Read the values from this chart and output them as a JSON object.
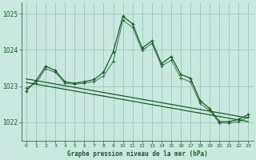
{
  "title": "Graphe pression niveau de la mer (hPa)",
  "background_color": "#c8e8e0",
  "plot_bg_color": "#c8e8e0",
  "grid_color": "#a0c8bc",
  "line_color": "#1a5c2a",
  "border_color": "#4a8c6a",
  "xlim": [
    -0.5,
    23.5
  ],
  "ylim": [
    1021.5,
    1025.3
  ],
  "yticks": [
    1022,
    1023,
    1024,
    1025
  ],
  "xticks": [
    0,
    1,
    2,
    3,
    4,
    5,
    6,
    7,
    8,
    9,
    10,
    11,
    12,
    13,
    14,
    15,
    16,
    17,
    18,
    19,
    20,
    21,
    22,
    23
  ],
  "series1_x": [
    0,
    1,
    2,
    3,
    4,
    5,
    6,
    7,
    8,
    9,
    10,
    11,
    12,
    13,
    14,
    15,
    16,
    17,
    18,
    19,
    20,
    21,
    22,
    23
  ],
  "series1_y": [
    1022.87,
    1023.15,
    1023.55,
    1023.43,
    1023.12,
    1023.08,
    1023.12,
    1023.18,
    1023.38,
    1023.95,
    1024.93,
    1024.72,
    1024.05,
    1024.25,
    1023.62,
    1023.82,
    1023.32,
    1023.22,
    1022.6,
    1022.38,
    1022.02,
    1022.02,
    1022.08,
    1022.22
  ],
  "series2_x": [
    0,
    1,
    2,
    3,
    4,
    5,
    6,
    7,
    8,
    9,
    10,
    11,
    12,
    13,
    14,
    15,
    16,
    17,
    18,
    19,
    20,
    21,
    22,
    23
  ],
  "series2_y": [
    1022.95,
    1023.08,
    1023.48,
    1023.38,
    1023.08,
    1023.05,
    1023.08,
    1023.12,
    1023.28,
    1023.68,
    1024.82,
    1024.62,
    1023.98,
    1024.18,
    1023.55,
    1023.72,
    1023.22,
    1023.12,
    1022.52,
    1022.32,
    1021.98,
    1021.98,
    1022.02,
    1022.15
  ],
  "trend1_x": [
    0,
    23
  ],
  "trend1_y": [
    1023.2,
    1022.12
  ],
  "trend2_x": [
    0,
    23
  ],
  "trend2_y": [
    1023.1,
    1022.02
  ]
}
